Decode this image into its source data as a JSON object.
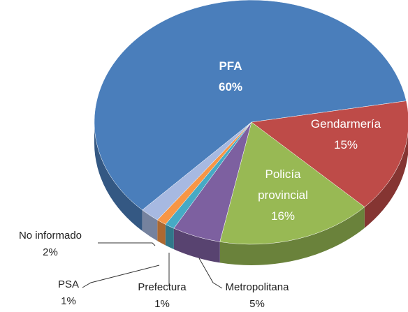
{
  "chart_data": {
    "type": "pie",
    "categories": [
      "PFA",
      "Gendarmería",
      "Policía provincial",
      "Metropolitana",
      "Prefectura",
      "PSA",
      "No informado"
    ],
    "values": [
      60,
      15,
      16,
      5,
      1,
      1,
      2
    ],
    "value_labels": [
      "60%",
      "15%",
      "16%",
      "5%",
      "1%",
      "1%",
      "2%"
    ],
    "colors": [
      "#4a7ebb",
      "#be4b48",
      "#98b954",
      "#7d60a0",
      "#46aac5",
      "#f79646",
      "#a7b9e1"
    ]
  }
}
